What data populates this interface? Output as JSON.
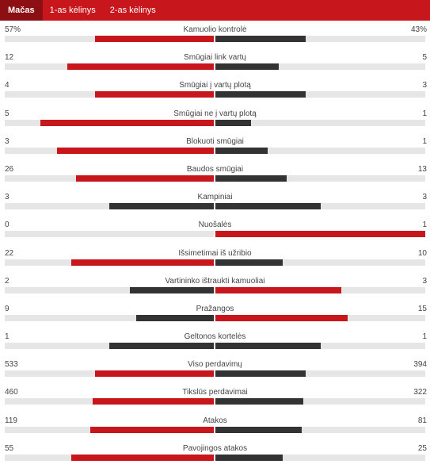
{
  "colors": {
    "header_bg": "#c8161d",
    "active_tab_bg": "#8c0f14",
    "red": "#c8161d",
    "dark": "#333333",
    "track": "#e6e6e6"
  },
  "tabs": [
    {
      "label": "Mačas",
      "active": true
    },
    {
      "label": "1-as kėlinys",
      "active": false
    },
    {
      "label": "2-as kėlinys",
      "active": false
    }
  ],
  "stats": [
    {
      "label": "Kamuolio kontrolė",
      "left": "57%",
      "right": "43%",
      "left_ratio": 0.57,
      "right_ratio": 0.43,
      "left_color": "red",
      "right_color": "dark"
    },
    {
      "label": "Smūgiai link vartų",
      "left": "12",
      "right": "5",
      "left_ratio": 0.7,
      "right_ratio": 0.3,
      "left_color": "red",
      "right_color": "dark"
    },
    {
      "label": "Smūgiai į vartų plotą",
      "left": "4",
      "right": "3",
      "left_ratio": 0.57,
      "right_ratio": 0.43,
      "left_color": "red",
      "right_color": "dark"
    },
    {
      "label": "Smūgiai ne į vartų plotą",
      "left": "5",
      "right": "1",
      "left_ratio": 0.83,
      "right_ratio": 0.17,
      "left_color": "red",
      "right_color": "dark"
    },
    {
      "label": "Blokuoti smūgiai",
      "left": "3",
      "right": "1",
      "left_ratio": 0.75,
      "right_ratio": 0.25,
      "left_color": "red",
      "right_color": "dark"
    },
    {
      "label": "Baudos smūgiai",
      "left": "26",
      "right": "13",
      "left_ratio": 0.66,
      "right_ratio": 0.34,
      "left_color": "red",
      "right_color": "dark"
    },
    {
      "label": "Kampiniai",
      "left": "3",
      "right": "3",
      "left_ratio": 0.5,
      "right_ratio": 0.5,
      "left_color": "dark",
      "right_color": "dark"
    },
    {
      "label": "Nuošalės",
      "left": "0",
      "right": "1",
      "left_ratio": 0.0,
      "right_ratio": 1.0,
      "left_color": "red",
      "right_color": "red"
    },
    {
      "label": "Išsimetimai iš užribio",
      "left": "22",
      "right": "10",
      "left_ratio": 0.68,
      "right_ratio": 0.32,
      "left_color": "red",
      "right_color": "dark"
    },
    {
      "label": "Vartininko ištraukti kamuoliai",
      "left": "2",
      "right": "3",
      "left_ratio": 0.4,
      "right_ratio": 0.6,
      "left_color": "dark",
      "right_color": "red"
    },
    {
      "label": "Pražangos",
      "left": "9",
      "right": "15",
      "left_ratio": 0.37,
      "right_ratio": 0.63,
      "left_color": "dark",
      "right_color": "red"
    },
    {
      "label": "Geltonos kortelės",
      "left": "1",
      "right": "1",
      "left_ratio": 0.5,
      "right_ratio": 0.5,
      "left_color": "dark",
      "right_color": "dark"
    },
    {
      "label": "Viso perdavimų",
      "left": "533",
      "right": "394",
      "left_ratio": 0.57,
      "right_ratio": 0.43,
      "left_color": "red",
      "right_color": "dark"
    },
    {
      "label": "Tikslūs perdavimai",
      "left": "460",
      "right": "322",
      "left_ratio": 0.58,
      "right_ratio": 0.42,
      "left_color": "red",
      "right_color": "dark"
    },
    {
      "label": "Atakos",
      "left": "119",
      "right": "81",
      "left_ratio": 0.59,
      "right_ratio": 0.41,
      "left_color": "red",
      "right_color": "dark"
    },
    {
      "label": "Pavojingos atakos",
      "left": "55",
      "right": "25",
      "left_ratio": 0.68,
      "right_ratio": 0.32,
      "left_color": "red",
      "right_color": "dark"
    }
  ]
}
